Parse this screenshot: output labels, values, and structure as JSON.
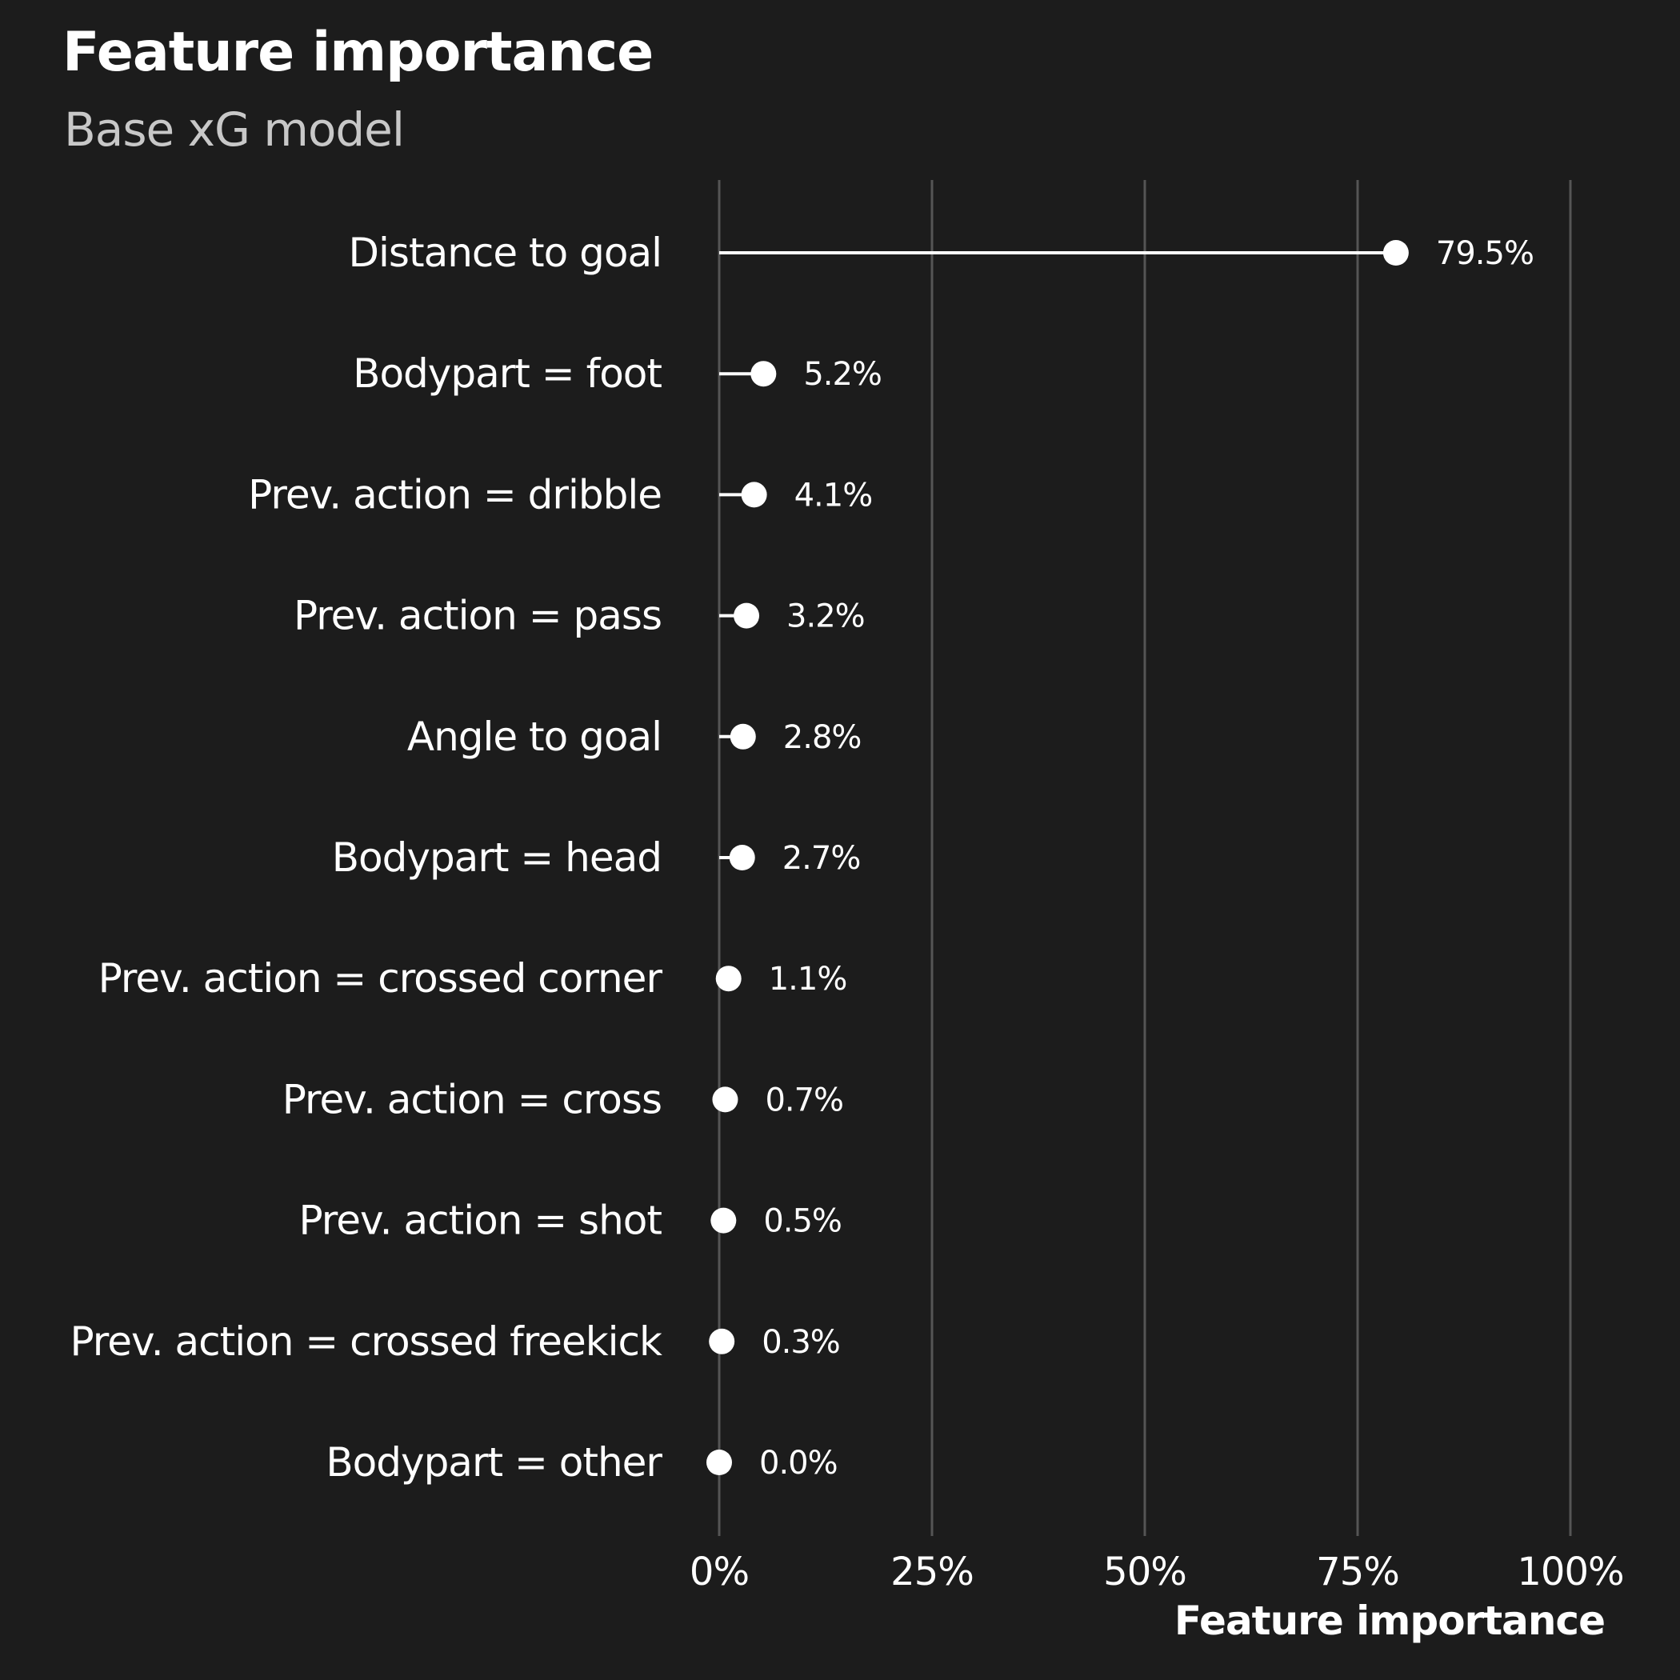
{
  "colors": {
    "background": "#1c1c1c",
    "foreground": "#ffffff",
    "subtitle": "#c8c8c8",
    "grid": "#555555"
  },
  "chart_data": {
    "type": "lollipop",
    "title": "Feature importance",
    "subtitle": "Base xG model",
    "xlabel": "Feature importance",
    "ylabel": "",
    "xlim": [
      0,
      100
    ],
    "x_ticks": [
      0,
      25,
      50,
      75,
      100
    ],
    "x_tick_labels": [
      "0%",
      "25%",
      "50%",
      "75%",
      "100%"
    ],
    "grid": "vertical",
    "categories": [
      "Distance to goal",
      "Bodypart = foot",
      "Prev. action = dribble",
      "Prev. action = pass",
      "Angle to goal",
      "Bodypart = head",
      "Prev. action = crossed corner",
      "Prev. action = cross",
      "Prev. action = shot",
      "Prev. action = crossed freekick",
      "Bodypart = other"
    ],
    "values": [
      79.5,
      5.2,
      4.1,
      3.2,
      2.8,
      2.7,
      1.1,
      0.7,
      0.5,
      0.3,
      0.0
    ],
    "value_labels": [
      "79.5%",
      "5.2%",
      "4.1%",
      "3.2%",
      "2.8%",
      "2.7%",
      "1.1%",
      "0.7%",
      "0.5%",
      "0.3%",
      "0.0%"
    ]
  }
}
